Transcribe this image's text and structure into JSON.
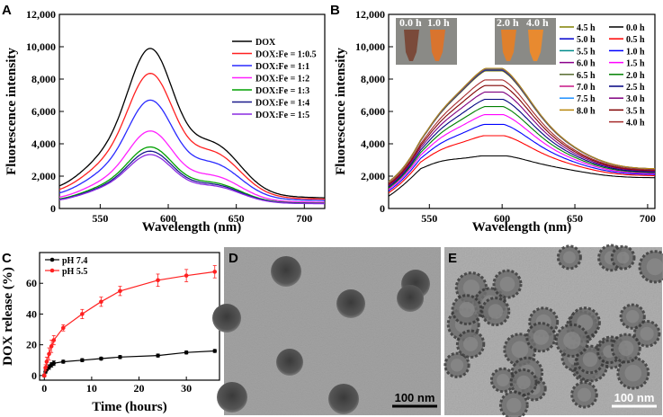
{
  "chart_data": [
    {
      "panel": "A",
      "type": "line",
      "xlabel": "Wavelength (nm)",
      "ylabel": "Fluorescence intensity",
      "xlim": [
        520,
        715
      ],
      "ylim": [
        0,
        12000
      ],
      "xticks": [
        550,
        600,
        650,
        700
      ],
      "yticks": [
        0,
        2000,
        4000,
        6000,
        8000,
        10000,
        12000
      ],
      "ytick_labels": [
        "0",
        "2,000",
        "4,000",
        "6,000",
        "8,000",
        "10,000",
        "12,000"
      ],
      "series": [
        {
          "name": "DOX",
          "color": "#000000",
          "peak": 9550,
          "shoulder": 6100,
          "start": 1900,
          "end": 1200
        },
        {
          "name": "DOX:Fe = 1:0.5",
          "color": "#ff2020",
          "peak": 8050,
          "shoulder": 5250,
          "start": 1600,
          "end": 1050
        },
        {
          "name": "DOX:Fe = 1:1",
          "color": "#2a2aff",
          "peak": 6450,
          "shoulder": 4200,
          "start": 1300,
          "end": 900
        },
        {
          "name": "DOX:Fe = 1:2",
          "color": "#ff20ff",
          "peak": 4600,
          "shoulder": 3000,
          "start": 950,
          "end": 700
        },
        {
          "name": "DOX:Fe = 1:3",
          "color": "#00a000",
          "peak": 3650,
          "shoulder": 2350,
          "start": 800,
          "end": 600
        },
        {
          "name": "DOX:Fe = 1:4",
          "color": "#1a1a8c",
          "peak": 3400,
          "shoulder": 2200,
          "start": 750,
          "end": 560
        },
        {
          "name": "DOX:Fe = 1:5",
          "color": "#8a2be2",
          "peak": 3200,
          "shoulder": 2050,
          "start": 720,
          "end": 540
        }
      ]
    },
    {
      "panel": "B",
      "type": "line",
      "xlabel": "Wavelength (nm)",
      "ylabel": "Fluorescence intensity",
      "xlim": [
        522,
        705
      ],
      "ylim": [
        0,
        12000
      ],
      "xticks": [
        550,
        600,
        650,
        700
      ],
      "yticks": [
        0,
        2000,
        4000,
        6000,
        8000,
        10000,
        12000
      ],
      "ytick_labels": [
        "0",
        "2,000",
        "4,000",
        "6,000",
        "8,000",
        "10,000",
        "12,000"
      ],
      "inset_labels": [
        "0.0 h",
        "1.0 h",
        "2.0 h",
        "4.0 h"
      ],
      "series": [
        {
          "name": "4.5 h",
          "color": "#808000",
          "peak": 8500
        },
        {
          "name": "5.0 h",
          "color": "#0000cd",
          "peak": 8550
        },
        {
          "name": "5.5 h",
          "color": "#008b8b",
          "peak": 8580
        },
        {
          "name": "6.0 h",
          "color": "#8b008b",
          "peak": 8600
        },
        {
          "name": "6.5 h",
          "color": "#556b2f",
          "peak": 8620
        },
        {
          "name": "7.0 h",
          "color": "#c71585",
          "peak": 8640
        },
        {
          "name": "7.5 h",
          "color": "#1e90ff",
          "peak": 8650
        },
        {
          "name": "8.0 h",
          "color": "#b8860b",
          "peak": 8660
        },
        {
          "name": "0.0 h",
          "color": "#000000",
          "peak": 3250
        },
        {
          "name": "0.5 h",
          "color": "#ff0000",
          "peak": 4500
        },
        {
          "name": "1.0 h",
          "color": "#0000ff",
          "peak": 5200
        },
        {
          "name": "1.5 h",
          "color": "#ff00ff",
          "peak": 5800
        },
        {
          "name": "2.0 h",
          "color": "#008000",
          "peak": 6300
        },
        {
          "name": "2.5 h",
          "color": "#000080",
          "peak": 6750
        },
        {
          "name": "3.0 h",
          "color": "#800080",
          "peak": 7200
        },
        {
          "name": "3.5 h",
          "color": "#800000",
          "peak": 7600
        },
        {
          "name": "4.0 h",
          "color": "#a52a2a",
          "peak": 7950
        }
      ]
    },
    {
      "panel": "C",
      "type": "scatter",
      "xlabel": "Time (hours)",
      "ylabel": "DOX release (%)",
      "xlim": [
        -1,
        37
      ],
      "ylim": [
        -3,
        80
      ],
      "xticks": [
        0,
        10,
        20,
        30
      ],
      "yticks": [
        0,
        20,
        40,
        60
      ],
      "series": [
        {
          "name": "pH 7.4",
          "color": "#000000",
          "x": [
            0,
            0.25,
            0.5,
            1,
            1.5,
            2,
            4,
            8,
            12,
            16,
            24,
            30,
            36
          ],
          "y": [
            0,
            2.5,
            4,
            5.5,
            7,
            8,
            9,
            10,
            11,
            12,
            13,
            15,
            16
          ],
          "err": [
            0.5,
            1,
            1,
            1.5,
            1.5,
            1.5,
            1,
            1,
            1,
            1,
            1,
            1,
            1
          ]
        },
        {
          "name": "pH 5.5",
          "color": "#ff2020",
          "x": [
            0,
            0.25,
            0.5,
            1,
            1.5,
            2,
            4,
            8,
            12,
            16,
            24,
            30,
            36
          ],
          "y": [
            0,
            5,
            9,
            14,
            19,
            23,
            31,
            40,
            48,
            55,
            62,
            65,
            67.5
          ],
          "err": [
            1,
            2,
            3,
            4,
            4,
            3,
            2,
            3,
            3,
            3,
            4,
            4,
            4
          ]
        }
      ]
    }
  ],
  "panels": {
    "A": "A",
    "B": "B",
    "C": "C",
    "D": "D",
    "E": "E"
  },
  "scalebars": {
    "D": "100 nm",
    "E": "100 nm"
  }
}
